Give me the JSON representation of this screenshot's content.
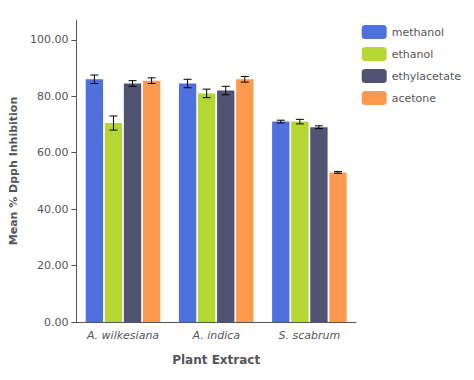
{
  "chart_data": {
    "type": "bar",
    "xlabel": "Plant Extract",
    "ylabel": "Mean % Dpph Inhibition",
    "categories": [
      "A. wilkesiana",
      "A. indica",
      "S. scabrum"
    ],
    "series": [
      {
        "name": "methanol",
        "values": [
          86.0,
          84.5,
          71.0
        ],
        "errors": [
          1.5,
          1.5,
          0.5
        ]
      },
      {
        "name": "ethanol",
        "values": [
          70.5,
          81.0,
          71.0
        ],
        "errors": [
          2.5,
          1.5,
          0.8
        ]
      },
      {
        "name": "ethylacetate",
        "values": [
          84.5,
          82.0,
          69.0
        ],
        "errors": [
          1.0,
          1.5,
          0.5
        ]
      },
      {
        "name": "acetone",
        "values": [
          85.5,
          86.0,
          53.0
        ],
        "errors": [
          1.0,
          1.0,
          0.3
        ]
      }
    ],
    "ylim": [
      0,
      107
    ],
    "yticks": [
      {
        "value": 0,
        "label": "0.00"
      },
      {
        "value": 20,
        "label": "20.00"
      },
      {
        "value": 40,
        "label": "40.00"
      },
      {
        "value": 60,
        "label": "60.00"
      },
      {
        "value": 80,
        "label": "80.00"
      },
      {
        "value": 100,
        "label": "100.00"
      }
    ],
    "grid": false,
    "legend": "right"
  }
}
